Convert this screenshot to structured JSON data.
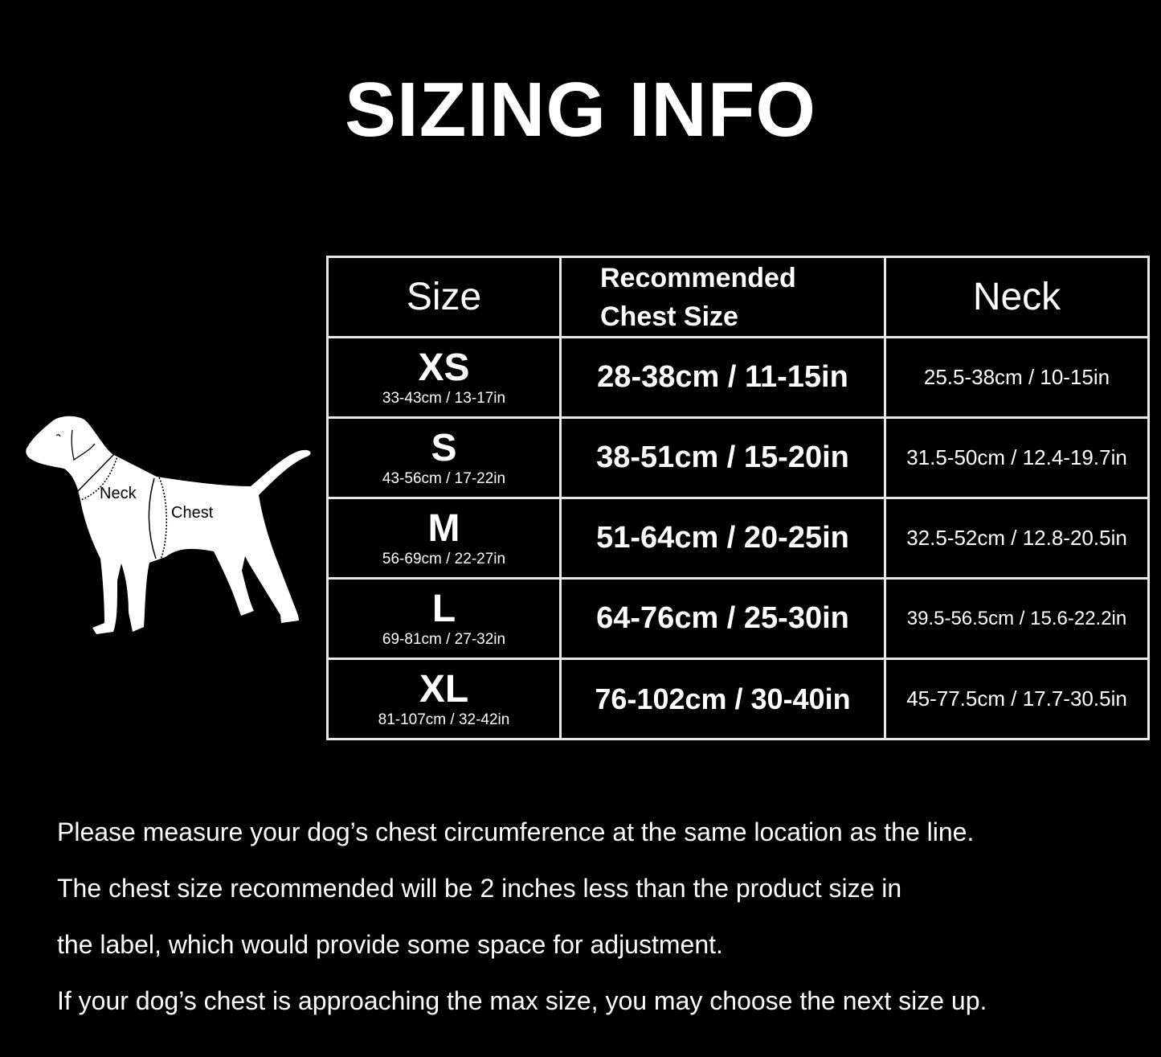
{
  "title": "SIZING INFO",
  "diagram": {
    "neck_label": "Neck",
    "chest_label": "Chest"
  },
  "table": {
    "headers": {
      "size": "Size",
      "chest_line1": "Recommended",
      "chest_line2": "Chest Size",
      "neck": "Neck"
    },
    "rows": [
      {
        "size": "XS",
        "product_size": "33-43cm / 13-17in",
        "chest": "28-38cm / 11-15in",
        "neck": "25.5-38cm / 10-15in"
      },
      {
        "size": "S",
        "product_size": "43-56cm / 17-22in",
        "chest": "38-51cm / 15-20in",
        "neck": "31.5-50cm / 12.4-19.7in"
      },
      {
        "size": "M",
        "product_size": "56-69cm / 22-27in",
        "chest": "51-64cm / 20-25in",
        "neck": "32.5-52cm / 12.8-20.5in"
      },
      {
        "size": "L",
        "product_size": "69-81cm / 27-32in",
        "chest": "64-76cm / 25-30in",
        "neck": "39.5-56.5cm / 15.6-22.2in"
      },
      {
        "size": "XL",
        "product_size": "81-107cm / 32-42in",
        "chest": "76-102cm / 30-40in",
        "neck": "45-77.5cm / 17.7-30.5in"
      }
    ]
  },
  "notes": [
    "Please measure your dog’s chest circumference at the same location as the line.",
    "The chest size recommended will be 2 inches less than the product size in",
    "the label, which would provide some space for adjustment.",
    "If your dog’s chest is approaching the max size, you may choose the next size up."
  ]
}
